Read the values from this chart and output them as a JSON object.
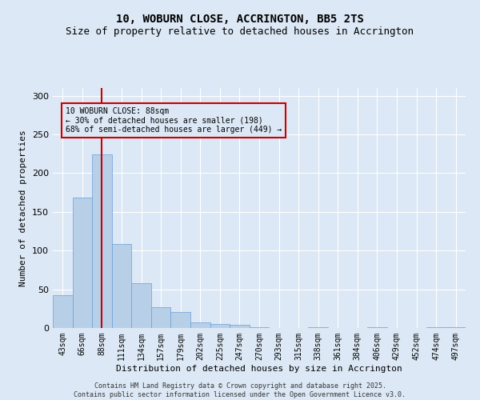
{
  "title_line1": "10, WOBURN CLOSE, ACCRINGTON, BB5 2TS",
  "title_line2": "Size of property relative to detached houses in Accrington",
  "xlabel": "Distribution of detached houses by size in Accrington",
  "ylabel": "Number of detached properties",
  "categories": [
    "43sqm",
    "66sqm",
    "88sqm",
    "111sqm",
    "134sqm",
    "157sqm",
    "179sqm",
    "202sqm",
    "225sqm",
    "247sqm",
    "270sqm",
    "293sqm",
    "315sqm",
    "338sqm",
    "361sqm",
    "384sqm",
    "406sqm",
    "429sqm",
    "452sqm",
    "474sqm",
    "497sqm"
  ],
  "values": [
    42,
    168,
    224,
    108,
    58,
    27,
    21,
    7,
    5,
    4,
    1,
    0,
    0,
    1,
    0,
    0,
    1,
    0,
    0,
    1,
    1
  ],
  "bar_color": "#b8cfe8",
  "bar_edge_color": "#6a9fd8",
  "vline_x_index": 2,
  "vline_color": "#cc0000",
  "annotation_box_text": "10 WOBURN CLOSE: 88sqm\n← 30% of detached houses are smaller (198)\n68% of semi-detached houses are larger (449) →",
  "annotation_box_color": "#cc0000",
  "background_color": "#dce8f5",
  "plot_bg_color": "#dce8f5",
  "grid_color": "#ffffff",
  "footer_text": "Contains HM Land Registry data © Crown copyright and database right 2025.\nContains public sector information licensed under the Open Government Licence v3.0.",
  "ylim": [
    0,
    310
  ],
  "yticks": [
    0,
    50,
    100,
    150,
    200,
    250,
    300
  ],
  "title_fontsize": 10,
  "subtitle_fontsize": 9,
  "tick_fontsize": 7,
  "label_fontsize": 8
}
